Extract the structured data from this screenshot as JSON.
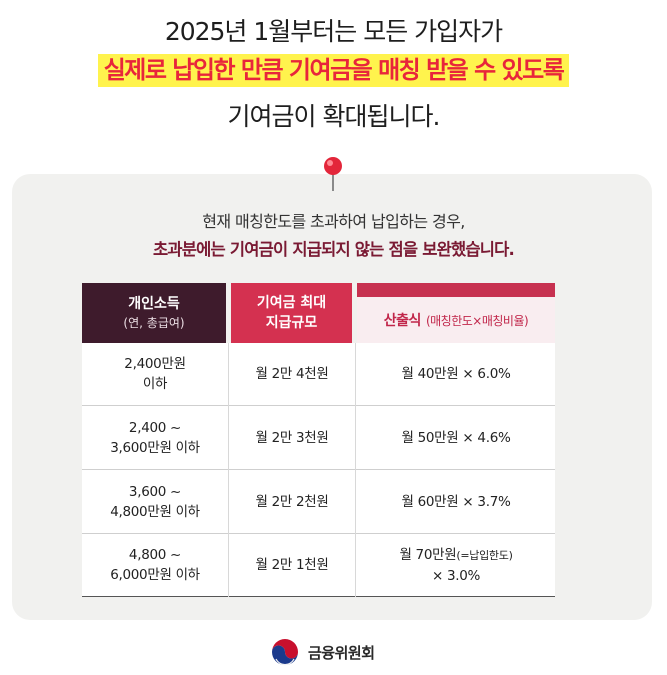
{
  "headline": {
    "line1": "2025년 1월부터는 모든 가입자가",
    "line2": "실제로 납입한 만큼 기여금을 매칭 받을 수 있도록",
    "line3": "기여금이 확대됩니다."
  },
  "card": {
    "intro": "현재 매칭한도를 초과하여 납입하는 경우,",
    "emphasis": "초과분에는 기여금이 지급되지 않는 점을 보완했습니다."
  },
  "table": {
    "headers": {
      "income_title": "개인소득",
      "income_sub": "(연, 총급여)",
      "max_line1": "기여금 최대",
      "max_line2": "지급규모",
      "formula_title": "산출식",
      "formula_sub": "(매칭한도×매칭비율)"
    },
    "rows": [
      {
        "income_l1": "2,400만원",
        "income_l2": "이하",
        "max": "월 2만 4천원",
        "formula_l1": "월 40만원 × 6.0%",
        "formula_note": "",
        "formula_l2": ""
      },
      {
        "income_l1": "2,400 ~",
        "income_l2": "3,600만원 이하",
        "max": "월 2만 3천원",
        "formula_l1": "월 50만원 × 4.6%",
        "formula_note": "",
        "formula_l2": ""
      },
      {
        "income_l1": "3,600 ~",
        "income_l2": "4,800만원 이하",
        "max": "월 2만 2천원",
        "formula_l1": "월 60만원 × 3.7%",
        "formula_note": "",
        "formula_l2": ""
      },
      {
        "income_l1": "4,800 ~",
        "income_l2": "6,000만원 이하",
        "max": "월 2만 1천원",
        "formula_l1": "월 70만원",
        "formula_note": "(=납입한도)",
        "formula_l2": "× 3.0%"
      }
    ]
  },
  "footer": {
    "org": "금융위원회",
    "logo_icon": "government-taegeuk-logo-icon"
  },
  "colors": {
    "highlight": "#fff34d",
    "headline_red": "#e8253b",
    "dark_header": "#3e1b2c",
    "red_header": "#d43150",
    "light_header": "#f9edf0",
    "emphasis_text": "#7a1a33",
    "card_bg": "#f1f1ef"
  }
}
